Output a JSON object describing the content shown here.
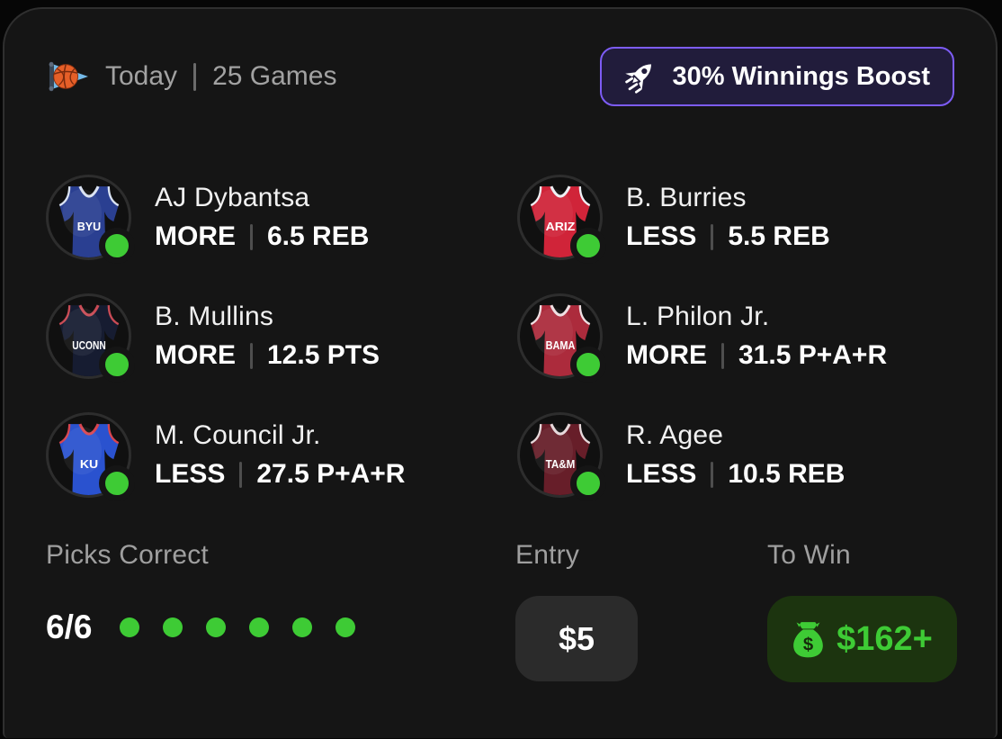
{
  "header": {
    "icon": "basketball-pennant-icon",
    "date_label": "Today",
    "games_count": "25 Games",
    "boost": {
      "icon": "rocket-icon",
      "label": "30% Winnings Boost"
    }
  },
  "picks": [
    {
      "player": "AJ Dybantsa",
      "team": "BYU",
      "direction": "MORE",
      "line": "6.5 REB",
      "jersey_color": "#2a3f91",
      "trim_color": "#d9e2f2",
      "status": "correct"
    },
    {
      "player": "B. Burries",
      "team": "ARIZ",
      "direction": "LESS",
      "line": "5.5 REB",
      "jersey_color": "#d02439",
      "trim_color": "#eef0f5",
      "status": "correct"
    },
    {
      "player": "B. Mullins",
      "team": "UCONN",
      "direction": "MORE",
      "line": "12.5 PTS",
      "jersey_color": "#161c31",
      "trim_color": "#c94b55",
      "status": "correct"
    },
    {
      "player": "L. Philon Jr.",
      "team": "BAMA",
      "direction": "MORE",
      "line": "31.5 P+A+R",
      "jersey_color": "#ac2b3c",
      "trim_color": "#efdfe2",
      "status": "correct"
    },
    {
      "player": "M. Council Jr.",
      "team": "KU",
      "direction": "LESS",
      "line": "27.5 P+A+R",
      "jersey_color": "#2a52cf",
      "trim_color": "#d84550",
      "status": "correct"
    },
    {
      "player": "R. Agee",
      "team": "TA&M",
      "direction": "LESS",
      "line": "10.5 REB",
      "jersey_color": "#671e29",
      "trim_color": "#e6d8da",
      "status": "correct"
    }
  ],
  "summary": {
    "picks_correct_label": "Picks Correct",
    "picks_correct_value": "6/6",
    "dots_total": 6,
    "dots_correct": 6,
    "entry_label": "Entry",
    "entry_value": "$5",
    "to_win_label": "To Win",
    "to_win_icon": "money-bag-icon",
    "to_win_value": "$162+"
  },
  "colors": {
    "accent_green": "#3ecb35",
    "boost_purple": "#7d5cf6",
    "card_background": "#151515",
    "to_win_background": "#1c340f"
  }
}
